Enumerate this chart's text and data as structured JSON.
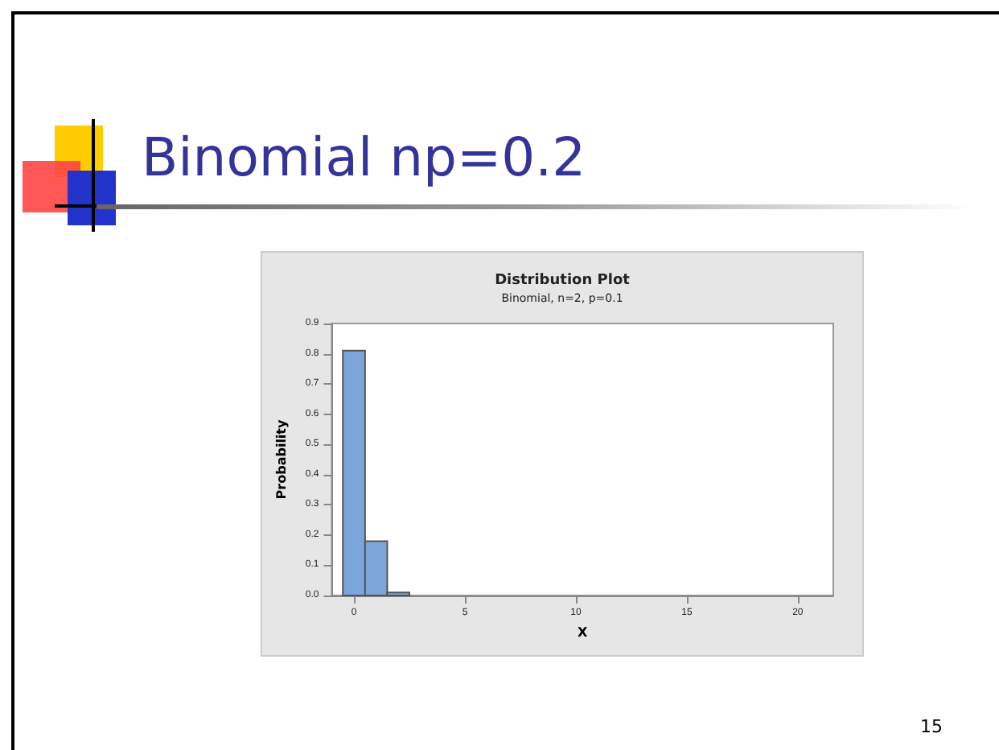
{
  "chart_data": {
    "type": "histogram",
    "title": "Distribution Plot",
    "subtitle": "Binomial, n=2, p=0.1",
    "xlabel": "X",
    "ylabel": "Probability",
    "annotations": [
      "Binomial np=0.2",
      "15"
    ],
    "bins": [
      -0.5,
      0.5,
      1.5,
      2.5
    ],
    "values": [
      0.81,
      0.18,
      0.01
    ],
    "color": "#7ca5da",
    "xlim": [
      -1,
      21.6
    ],
    "xticks": [
      0,
      5,
      10,
      15,
      20
    ],
    "ylim": [
      0,
      0.9
    ],
    "yticks": [
      {
        "value": 0,
        "label": "0.0"
      },
      {
        "value": 0.1,
        "label": "0.1"
      },
      {
        "value": 0.2,
        "label": "0.2"
      },
      {
        "value": 0.3,
        "label": "0.3"
      },
      {
        "value": 0.4,
        "label": "0.4"
      },
      {
        "value": 0.5,
        "label": "0.5"
      },
      {
        "value": 0.6,
        "label": "0.6"
      },
      {
        "value": 0.7,
        "label": "0.7"
      },
      {
        "value": 0.8,
        "label": "0.8"
      },
      {
        "value": 0.9,
        "label": "0.9"
      }
    ],
    "grid": false
  }
}
